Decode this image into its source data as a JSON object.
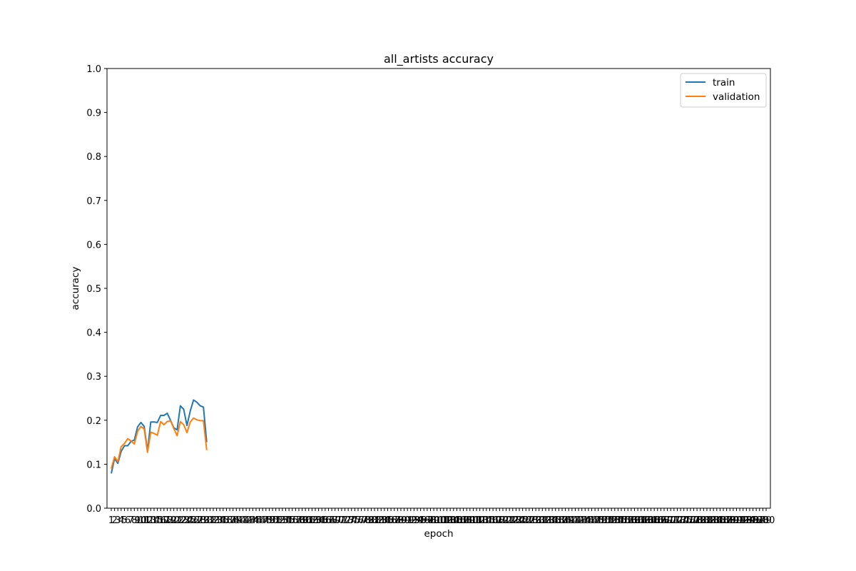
{
  "chart_data": {
    "type": "line",
    "title": "all_artists accuracy",
    "xlabel": "epoch",
    "ylabel": "accuracy",
    "ylim": [
      0,
      1
    ],
    "yticks": [
      "0.0",
      "0.1",
      "0.2",
      "0.3",
      "0.4",
      "0.5",
      "0.6",
      "0.7",
      "0.8",
      "0.9",
      "1.0"
    ],
    "xlim": [
      0,
      200
    ],
    "xticks_first": 1,
    "xticks_last": 200,
    "grid": false,
    "legend_position": "top-right",
    "x": [
      1,
      2,
      3,
      4,
      5,
      6,
      7,
      8,
      9,
      10,
      11,
      12,
      13,
      14,
      15,
      16,
      17,
      18,
      19,
      20,
      21,
      22,
      23,
      24,
      25,
      26,
      27,
      28,
      29,
      30
    ],
    "series": [
      {
        "name": "train",
        "color": "#1f77b4",
        "values": [
          0.079,
          0.113,
          0.102,
          0.129,
          0.142,
          0.142,
          0.152,
          0.155,
          0.185,
          0.195,
          0.186,
          0.13,
          0.196,
          0.196,
          0.195,
          0.211,
          0.211,
          0.216,
          0.2,
          0.183,
          0.178,
          0.233,
          0.225,
          0.188,
          0.221,
          0.246,
          0.241,
          0.233,
          0.23,
          0.15
        ]
      },
      {
        "name": "validation",
        "color": "#ff7f0e",
        "values": [
          0.09,
          0.117,
          0.106,
          0.14,
          0.147,
          0.158,
          0.153,
          0.146,
          0.175,
          0.186,
          0.18,
          0.127,
          0.173,
          0.17,
          0.166,
          0.197,
          0.19,
          0.197,
          0.199,
          0.181,
          0.165,
          0.197,
          0.19,
          0.172,
          0.196,
          0.205,
          0.201,
          0.199,
          0.199,
          0.132
        ]
      }
    ]
  }
}
